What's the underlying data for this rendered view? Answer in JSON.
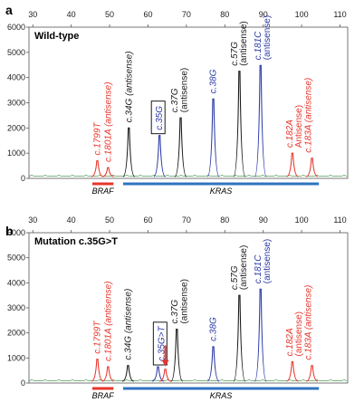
{
  "colors": {
    "red": "#e8352b",
    "black": "#1a1a1a",
    "blue": "#2b3aa6",
    "green": "#2e8b3a",
    "kras_bar": "#2f74c0",
    "braf_bar": "#e8352b",
    "box": "#000000",
    "arrow": "#e8352b"
  },
  "chart_data": [
    {
      "type": "line",
      "panel_label": "a",
      "title": "Wild-type",
      "xlim": [
        29,
        112
      ],
      "ylim": [
        0,
        6000
      ],
      "xticks": [
        30,
        40,
        50,
        60,
        70,
        80,
        90,
        100,
        110
      ],
      "yticks": [
        0,
        1000,
        2000,
        3000,
        4000,
        5000,
        6000
      ],
      "grid": false,
      "peaks": [
        {
          "x": 46.8,
          "y": 700,
          "color": "red"
        },
        {
          "x": 49.6,
          "y": 430,
          "color": "red"
        },
        {
          "x": 55.0,
          "y": 2000,
          "color": "black"
        },
        {
          "x": 63.0,
          "y": 1700,
          "color": "blue"
        },
        {
          "x": 68.5,
          "y": 2400,
          "color": "black"
        },
        {
          "x": 77.0,
          "y": 3150,
          "color": "blue"
        },
        {
          "x": 83.8,
          "y": 4250,
          "color": "black"
        },
        {
          "x": 89.3,
          "y": 4480,
          "color": "blue"
        },
        {
          "x": 97.6,
          "y": 1000,
          "color": "red"
        },
        {
          "x": 102.7,
          "y": 800,
          "color": "red"
        }
      ],
      "annotations": [
        {
          "text": "c.1799T",
          "x": 46.8,
          "color": "red",
          "boxed": false
        },
        {
          "text": "c.1801A (antisense)",
          "x": 49.6,
          "color": "red",
          "boxed": false
        },
        {
          "text": "c.34G (antisense)",
          "x": 55.0,
          "color": "black",
          "boxed": false
        },
        {
          "text": "c.35G",
          "x": 63.0,
          "color": "blue",
          "boxed": true
        },
        {
          "text": "c.37G",
          "x": 67.0,
          "color": "black",
          "boxed": false
        },
        {
          "text": "(antisense)",
          "x": 69.4,
          "color": "black",
          "boxed": false
        },
        {
          "text": "c.38G",
          "x": 77.0,
          "color": "blue",
          "boxed": false
        },
        {
          "text": "c.57G",
          "x": 82.5,
          "color": "black",
          "boxed": false
        },
        {
          "text": "(antisense)",
          "x": 84.9,
          "color": "black",
          "boxed": false
        },
        {
          "text": "c.181C",
          "x": 88.6,
          "color": "blue",
          "boxed": false
        },
        {
          "text": "(antisense)",
          "x": 91.0,
          "color": "blue",
          "boxed": false
        },
        {
          "text": "c.182A",
          "x": 96.9,
          "color": "red",
          "boxed": false
        },
        {
          "text": "Antisense)",
          "x": 99.3,
          "color": "red",
          "boxed": false
        },
        {
          "text": "c.183A (antisense)",
          "x": 101.8,
          "color": "red",
          "boxed": false
        }
      ],
      "gene_bars": [
        {
          "name": "BRAF",
          "x_start": 45.5,
          "x_end": 51,
          "color": "braf_bar"
        },
        {
          "name": "KRAS",
          "x_start": 53.5,
          "x_end": 104.5,
          "color": "kras_bar"
        }
      ]
    },
    {
      "type": "line",
      "panel_label": "b",
      "title": "Mutation c.35G>T",
      "xlim": [
        29,
        112
      ],
      "ylim": [
        0,
        6000
      ],
      "xticks": [
        30,
        40,
        50,
        60,
        70,
        80,
        90,
        100,
        110
      ],
      "yticks": [
        0,
        1000,
        2000,
        3000,
        4000,
        5000,
        6000
      ],
      "grid": false,
      "peaks": [
        {
          "x": 46.8,
          "y": 950,
          "color": "red"
        },
        {
          "x": 49.6,
          "y": 650,
          "color": "red"
        },
        {
          "x": 54.8,
          "y": 700,
          "color": "black"
        },
        {
          "x": 62.6,
          "y": 650,
          "color": "blue"
        },
        {
          "x": 64.5,
          "y": 550,
          "color": "red"
        },
        {
          "x": 67.5,
          "y": 2150,
          "color": "black"
        },
        {
          "x": 77.0,
          "y": 1450,
          "color": "blue"
        },
        {
          "x": 83.8,
          "y": 3500,
          "color": "black"
        },
        {
          "x": 89.3,
          "y": 3750,
          "color": "blue"
        },
        {
          "x": 97.6,
          "y": 850,
          "color": "red"
        },
        {
          "x": 102.7,
          "y": 700,
          "color": "red"
        }
      ],
      "annotations": [
        {
          "text": "c.1799T",
          "x": 46.8,
          "color": "red",
          "boxed": false
        },
        {
          "text": "c.1801A (antisense)",
          "x": 49.6,
          "color": "red",
          "boxed": false
        },
        {
          "text": "c.34G (antisense)",
          "x": 54.8,
          "color": "black",
          "boxed": false
        },
        {
          "text": "c.35G>T",
          "x": 63.5,
          "color": "blue",
          "boxed": true
        },
        {
          "text": "c.37G",
          "x": 67.0,
          "color": "black",
          "boxed": false
        },
        {
          "text": "(antisense)",
          "x": 69.4,
          "color": "black",
          "boxed": false
        },
        {
          "text": "c.38G",
          "x": 77.0,
          "color": "blue",
          "boxed": false
        },
        {
          "text": "c.57G",
          "x": 82.5,
          "color": "black",
          "boxed": false
        },
        {
          "text": "(antisense)",
          "x": 84.9,
          "color": "black",
          "boxed": false
        },
        {
          "text": "c.181C",
          "x": 88.6,
          "color": "blue",
          "boxed": false
        },
        {
          "text": "(antisense)",
          "x": 91.0,
          "color": "blue",
          "boxed": false
        },
        {
          "text": "c.182A",
          "x": 96.9,
          "color": "red",
          "boxed": false
        },
        {
          "text": "(antisense)",
          "x": 99.3,
          "color": "red",
          "boxed": false
        },
        {
          "text": "c.183A (antisense)",
          "x": 101.8,
          "color": "red",
          "boxed": false
        }
      ],
      "arrow": {
        "x": 64.5,
        "color": "arrow"
      },
      "gene_bars": [
        {
          "name": "BRAF",
          "x_start": 45.5,
          "x_end": 51,
          "color": "braf_bar"
        },
        {
          "name": "KRAS",
          "x_start": 53.5,
          "x_end": 104.5,
          "color": "kras_bar"
        }
      ]
    }
  ]
}
